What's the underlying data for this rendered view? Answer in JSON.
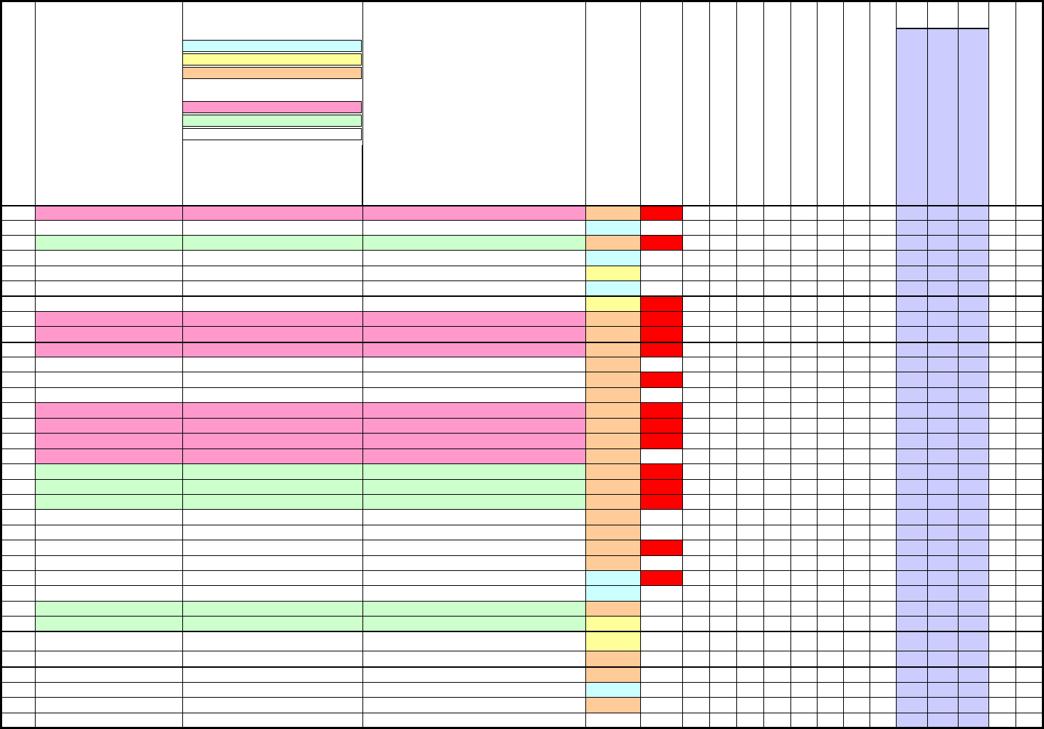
{
  "palette": {
    "cyan": "#ccffff",
    "yellow": "#ffff99",
    "orange": "#ffcc99",
    "pink": "#ff99cc",
    "green": "#ccffcc",
    "white": "#ffffff",
    "red": "#ff0000",
    "lavender": "#ccccff"
  },
  "legend": [
    "cyan",
    "yellow",
    "orange",
    "pink",
    "green",
    "white"
  ],
  "rows": [
    {
      "band": "pink",
      "category": "orange",
      "flag": true
    },
    {
      "band": "white",
      "category": "cyan",
      "flag": false
    },
    {
      "band": "green",
      "category": "orange",
      "flag": true
    },
    {
      "band": "white",
      "category": "cyan",
      "flag": false
    },
    {
      "band": "white",
      "category": "yellow",
      "flag": false
    },
    {
      "band": "white",
      "category": "cyan",
      "flag": false
    },
    {
      "band": "white",
      "category": "yellow",
      "flag": true
    },
    {
      "band": "pink",
      "category": "orange",
      "flag": true
    },
    {
      "band": "pink",
      "category": "orange",
      "flag": true
    },
    {
      "band": "pink",
      "category": "orange",
      "flag": true
    },
    {
      "band": "white",
      "category": "orange",
      "flag": false
    },
    {
      "band": "white",
      "category": "orange",
      "flag": true
    },
    {
      "band": "white",
      "category": "orange",
      "flag": false
    },
    {
      "band": "pink",
      "category": "orange",
      "flag": true
    },
    {
      "band": "pink",
      "category": "orange",
      "flag": true
    },
    {
      "band": "pink",
      "category": "orange",
      "flag": true
    },
    {
      "band": "pink",
      "category": "orange",
      "flag": false
    },
    {
      "band": "green",
      "category": "orange",
      "flag": true
    },
    {
      "band": "green",
      "category": "orange",
      "flag": true
    },
    {
      "band": "green",
      "category": "orange",
      "flag": true
    },
    {
      "band": "white",
      "category": "orange",
      "flag": false
    },
    {
      "band": "white",
      "category": "orange",
      "flag": false
    },
    {
      "band": "white",
      "category": "orange",
      "flag": true
    },
    {
      "band": "white",
      "category": "orange",
      "flag": false
    },
    {
      "band": "white",
      "category": "cyan",
      "flag": true
    },
    {
      "band": "white",
      "category": "cyan",
      "flag": false
    },
    {
      "band": "green",
      "category": "orange",
      "flag": false
    },
    {
      "band": "green",
      "category": "yellow",
      "flag": false
    },
    {
      "band": "white",
      "category": "yellow",
      "flag": false
    },
    {
      "band": "white",
      "category": "orange",
      "flag": false
    },
    {
      "band": "white",
      "category": "orange",
      "flag": false
    },
    {
      "band": "white",
      "category": "cyan",
      "flag": false
    },
    {
      "band": "white",
      "category": "orange",
      "flag": false
    }
  ]
}
